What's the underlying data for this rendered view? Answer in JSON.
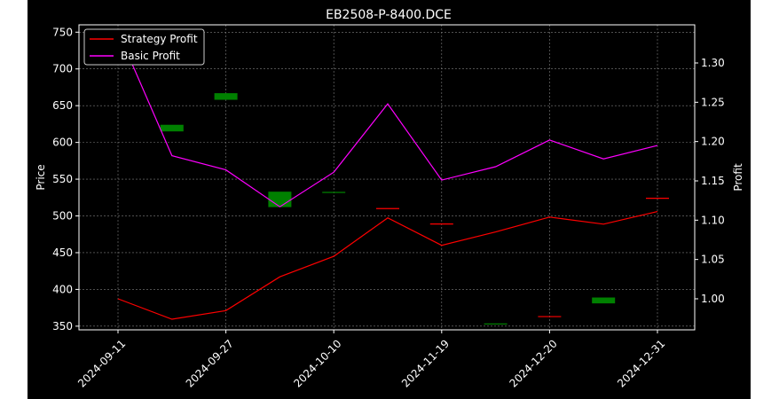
{
  "chart_data": {
    "type": "line",
    "title": "EB2508-P-8400.DCE",
    "xlabel": "",
    "ylabel_left": "Price",
    "ylabel_right": "Profit",
    "x_ticks": [
      "2024-09-11",
      "2024-09-27",
      "2024-10-10",
      "2024-11-19",
      "2024-12-20",
      "2024-12-31"
    ],
    "y_left": {
      "ylim": [
        345,
        760
      ],
      "ticks": [
        350,
        400,
        450,
        500,
        550,
        600,
        650,
        700,
        750
      ]
    },
    "y_right": {
      "ylim": [
        0.9605,
        1.3485
      ],
      "ticks": [
        1.0,
        1.05,
        1.1,
        1.15,
        1.2,
        1.25,
        1.3
      ]
    },
    "grid": true,
    "legend_position": "top-left",
    "background_color": "#000000",
    "text_color": "#ffffff",
    "candles": {
      "color": "#008000",
      "items": [
        {
          "x": 1,
          "open": 615,
          "close": 624
        },
        {
          "x": 2,
          "open": 658,
          "close": 667
        },
        {
          "x": 3,
          "open": 512,
          "close": 533
        },
        {
          "x": 4,
          "open": 532,
          "close": 532
        },
        {
          "x": 5,
          "open": 510,
          "close": 510
        },
        {
          "x": 6,
          "open": 489,
          "close": 489
        },
        {
          "x": 7,
          "open": 353,
          "close": 353
        },
        {
          "x": 8,
          "open": 363,
          "close": 363
        },
        {
          "x": 9,
          "open": 381,
          "close": 389
        },
        {
          "x": 10,
          "open": 524,
          "close": 524
        }
      ]
    },
    "series": [
      {
        "name": "Strategy Profit",
        "color": "#ff0000",
        "axis": "right",
        "x": [
          0,
          1,
          2,
          3,
          4,
          5,
          6,
          7,
          8,
          9,
          10
        ],
        "values": [
          1.0,
          0.974,
          0.985,
          1.028,
          1.054,
          1.103,
          1.068,
          1.085,
          1.104,
          1.095,
          1.111
        ]
      },
      {
        "name": "Basic Profit",
        "color": "#ff00ff",
        "axis": "right",
        "x": [
          0,
          1,
          2,
          3,
          4,
          5,
          6,
          7,
          8,
          9,
          10
        ],
        "values": [
          1.34,
          1.182,
          1.164,
          1.117,
          1.161,
          1.248,
          1.151,
          1.168,
          1.202,
          1.178,
          1.195
        ]
      }
    ]
  }
}
